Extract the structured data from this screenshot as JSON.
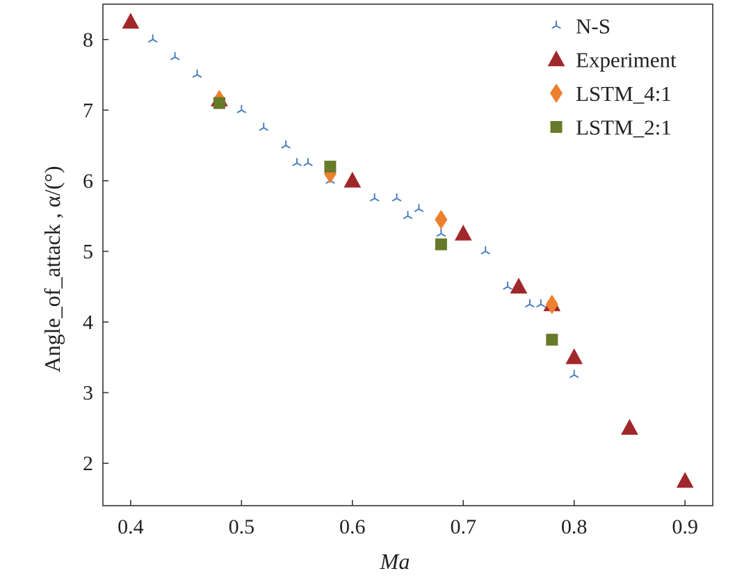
{
  "chart_data": {
    "type": "scatter",
    "title": "",
    "xlabel": "Ma",
    "ylabel": "Angle_of_attack , α/(°)",
    "xlim": [
      0.375,
      0.925
    ],
    "ylim": [
      1.4,
      8.5
    ],
    "xticks": [
      "0.4",
      "0.5",
      "0.6",
      "0.7",
      "0.8",
      "0.9"
    ],
    "yticks": [
      "2",
      "3",
      "4",
      "5",
      "6",
      "7",
      "8"
    ],
    "grid": false,
    "legend_position": "top-right",
    "series": [
      {
        "name": "N-S",
        "marker": "tri",
        "color": "#4a7fc1",
        "points": [
          [
            0.42,
            8.0
          ],
          [
            0.44,
            7.75
          ],
          [
            0.46,
            7.5
          ],
          [
            0.48,
            7.1
          ],
          [
            0.5,
            7.0
          ],
          [
            0.52,
            6.75
          ],
          [
            0.54,
            6.5
          ],
          [
            0.55,
            6.25
          ],
          [
            0.56,
            6.25
          ],
          [
            0.58,
            6.0
          ],
          [
            0.62,
            5.75
          ],
          [
            0.64,
            5.75
          ],
          [
            0.65,
            5.5
          ],
          [
            0.66,
            5.6
          ],
          [
            0.68,
            5.25
          ],
          [
            0.72,
            5.0
          ],
          [
            0.74,
            4.5
          ],
          [
            0.76,
            4.25
          ],
          [
            0.77,
            4.25
          ],
          [
            0.78,
            4.25
          ],
          [
            0.8,
            3.25
          ]
        ]
      },
      {
        "name": "Experiment",
        "marker": "triangle",
        "color": "#a0272a",
        "points": [
          [
            0.4,
            8.25
          ],
          [
            0.48,
            7.15
          ],
          [
            0.6,
            6.0
          ],
          [
            0.7,
            5.25
          ],
          [
            0.75,
            4.5
          ],
          [
            0.78,
            4.25
          ],
          [
            0.8,
            3.5
          ],
          [
            0.85,
            2.5
          ],
          [
            0.9,
            1.75
          ]
        ]
      },
      {
        "name": "LSTM_4:1",
        "marker": "diamond",
        "color": "#ee7f2d",
        "points": [
          [
            0.48,
            7.15
          ],
          [
            0.58,
            6.1
          ],
          [
            0.68,
            5.45
          ],
          [
            0.78,
            4.25
          ]
        ]
      },
      {
        "name": "LSTM_2:1",
        "marker": "square",
        "color": "#667a2a",
        "points": [
          [
            0.48,
            7.1
          ],
          [
            0.58,
            6.2
          ],
          [
            0.68,
            5.1
          ],
          [
            0.78,
            3.75
          ]
        ]
      }
    ]
  }
}
